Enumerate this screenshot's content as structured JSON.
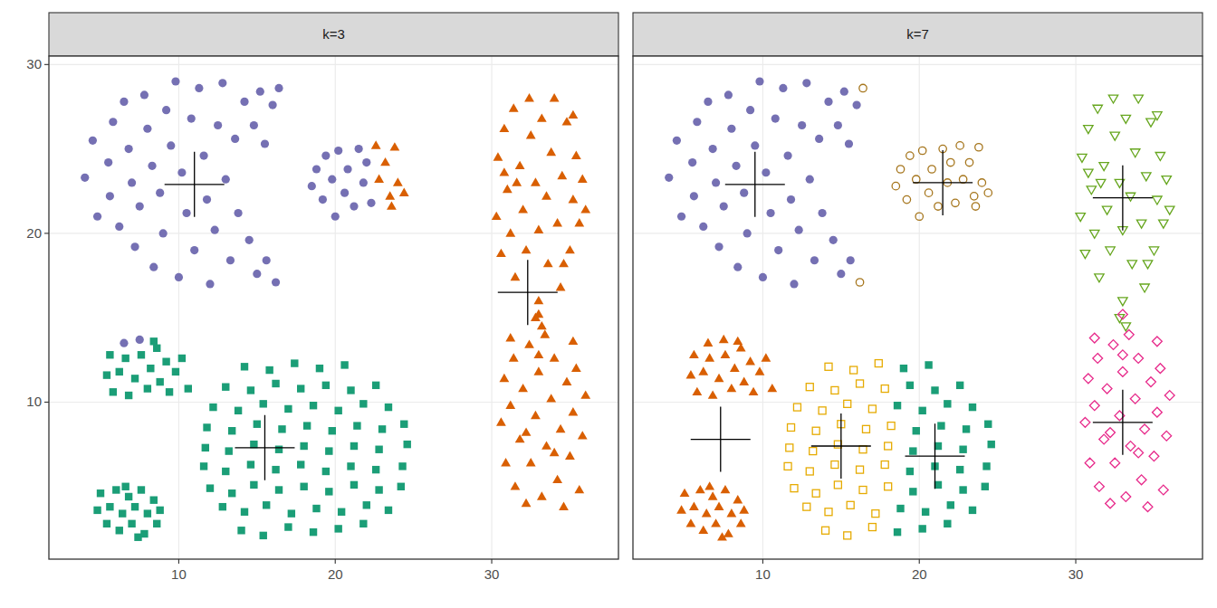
{
  "chart_data": [
    {
      "type": "scatter",
      "title": "k=3",
      "xlim": [
        1.7,
        38.1
      ],
      "ylim": [
        0.7,
        30.5
      ],
      "xticks": [
        10,
        20,
        30
      ],
      "yticks": [
        10,
        20,
        30
      ],
      "grid": true,
      "series": [
        {
          "color": "#7570b3",
          "marker": "circle",
          "x": [
            4,
            4.5,
            4.8,
            5.5,
            5.8,
            5.6,
            6.2,
            6.5,
            6.8,
            7,
            7.2,
            7.5,
            7.8,
            8,
            8.3,
            8.4,
            8.8,
            9,
            9.2,
            9.5,
            9.8,
            10,
            10.2,
            10.5,
            10.8,
            11,
            11.3,
            11.6,
            11.8,
            12,
            12.3,
            12.5,
            12.8,
            13,
            13.3,
            13.6,
            13.8,
            14.2,
            14.5,
            14.8,
            15,
            15.2,
            15.5,
            15.6,
            16,
            16.2,
            16.4,
            18.5,
            18.8,
            19.2,
            19.4,
            19.8,
            20,
            20.2,
            20.6,
            20.8,
            21.2,
            21.5,
            21.8,
            22,
            22.3,
            6.5,
            7.5
          ],
          "y": [
            23.3,
            25.5,
            21,
            24.2,
            26.6,
            22.2,
            20.4,
            27.8,
            25,
            23,
            19.2,
            21.6,
            28.2,
            26.2,
            24,
            18,
            22.4,
            20,
            27.3,
            25.2,
            29,
            17.4,
            23.6,
            21.2,
            26.8,
            19,
            28.6,
            24.6,
            22,
            17,
            20.2,
            26.4,
            28.9,
            23.2,
            18.4,
            25.6,
            21.2,
            27.8,
            19.6,
            26.4,
            17.6,
            28.4,
            25.3,
            18.4,
            27.6,
            17.1,
            28.6,
            22.8,
            23.8,
            22,
            24.6,
            23.2,
            21,
            24.9,
            22.4,
            23.8,
            21.6,
            25,
            23,
            24.2,
            21.8,
            13.5,
            13.7
          ]
        },
        {
          "color": "#1b9e77",
          "marker": "square",
          "x": [
            5.4,
            5.6,
            5.8,
            6.2,
            6.6,
            6.8,
            7.2,
            7.6,
            8,
            8.2,
            8.6,
            8.8,
            9.2,
            9.4,
            9.8,
            10.2,
            10.6,
            8.4,
            4.8,
            5,
            5.4,
            5.6,
            6,
            6.2,
            6.4,
            6.8,
            7,
            7.2,
            7.6,
            7.8,
            8,
            8.4,
            8.6,
            8.8,
            6.6,
            7.4,
            14,
            15.4,
            17,
            12.8,
            14.2,
            15.6,
            17.2,
            12,
            13.4,
            14.8,
            16.4,
            18,
            11.6,
            13,
            14.6,
            16.2,
            17.8,
            11.7,
            13.2,
            14.8,
            16.4,
            18,
            11.8,
            13.4,
            15,
            16.6,
            18.2,
            12.2,
            13.8,
            15.4,
            17,
            13,
            14.6,
            16.2,
            17.8,
            14.2,
            15.8,
            17.4,
            18.6,
            20.2,
            21.8,
            18.8,
            20.4,
            22,
            23.4,
            19.6,
            21.2,
            22.8,
            24.2,
            19.4,
            21,
            22.6,
            24.3,
            19.6,
            21.2,
            22.8,
            24.6,
            19.8,
            21.4,
            23,
            24.4,
            18.6,
            20.2,
            21.8,
            23.4,
            19.4,
            21,
            22.6,
            19,
            20.6
          ],
          "y": [
            11.6,
            12.8,
            10.6,
            11.8,
            12.6,
            10.4,
            11.4,
            12.8,
            10.8,
            12,
            13.2,
            11.2,
            12.4,
            10.6,
            11.8,
            12.6,
            10.8,
            13.6,
            3.6,
            4.6,
            2.8,
            3.8,
            4.8,
            2.4,
            3.4,
            4.4,
            2.8,
            3.8,
            4.8,
            2.2,
            3.4,
            4.2,
            2.8,
            3.6,
            5,
            2,
            2.4,
            2.1,
            2.6,
            3.8,
            3.5,
            3.9,
            3.4,
            4.9,
            4.6,
            5.1,
            4.8,
            5,
            6.2,
            5.9,
            6.3,
            6,
            6.3,
            7.3,
            7.1,
            7.5,
            7.2,
            7.4,
            8.5,
            8.3,
            8.7,
            8.4,
            8.6,
            9.7,
            9.5,
            9.9,
            9.6,
            10.9,
            10.7,
            11.1,
            10.8,
            12.1,
            11.9,
            12.3,
            2.3,
            2.5,
            2.8,
            3.7,
            3.5,
            3.9,
            3.6,
            4.7,
            5.1,
            4.8,
            5,
            5.9,
            6.2,
            6,
            6.2,
            7.1,
            7.4,
            7.2,
            7.5,
            8.3,
            8.6,
            8.4,
            8.7,
            9.8,
            9.5,
            9.9,
            9.7,
            11,
            10.7,
            11,
            12,
            12.2
          ]
        },
        {
          "color": "#d95f02",
          "marker": "triangle",
          "x": [
            22.6,
            22.8,
            23.2,
            23.5,
            23.8,
            24,
            24.4,
            23.6,
            30.3,
            30.4,
            30.6,
            30.8,
            31,
            31.2,
            31.4,
            31.5,
            31.8,
            32,
            32.2,
            32.4,
            32.5,
            32.8,
            33,
            33,
            33.2,
            33.5,
            33.6,
            33.8,
            34,
            34.2,
            34.4,
            34.5,
            34.8,
            35,
            35.2,
            35.4,
            35.6,
            35.8,
            35.2,
            34.6,
            32.8,
            33.2,
            31.6,
            36,
            30.8,
            30.6,
            30.8,
            30.9,
            31.2,
            31.4,
            31.5,
            31.8,
            32,
            32.2,
            32.4,
            32.5,
            32.8,
            33,
            33,
            33.2,
            33.4,
            33.5,
            33.8,
            34,
            34.2,
            34.4,
            34.6,
            34.8,
            35,
            35.2,
            35.4,
            35.6,
            35.8,
            36,
            35.2,
            31.2,
            33,
            32.2,
            34
          ],
          "y": [
            25.2,
            23.2,
            24.2,
            22.2,
            25.1,
            23,
            22.4,
            21.6,
            21,
            24.5,
            18.8,
            26.2,
            22.6,
            20,
            27.4,
            17.4,
            24,
            21.4,
            19,
            28,
            25.8,
            23,
            16,
            20.2,
            26.8,
            22.2,
            18.2,
            24.8,
            28,
            20.6,
            16.8,
            23.4,
            26.6,
            19,
            22,
            24.6,
            20.6,
            23.2,
            27,
            18.2,
            15,
            14.5,
            23,
            21.4,
            23.6,
            8.8,
            11.4,
            6.4,
            9.8,
            12.6,
            5,
            7.8,
            10.8,
            4,
            13.4,
            6.4,
            9.2,
            11.8,
            15.2,
            4.4,
            14,
            7.4,
            10.2,
            12.6,
            5.4,
            8.4,
            3.8,
            11.2,
            6.8,
            9.4,
            12,
            4.8,
            8,
            10.4,
            13.6,
            13.8,
            12.8,
            8.2,
            7
          ]
        },
        {
          "color": "#000000",
          "marker": "cross",
          "x": [
            11,
            15.5,
            32.3
          ],
          "y": [
            22.9,
            7.3,
            16.5
          ]
        }
      ]
    },
    {
      "type": "scatter",
      "title": "k=7",
      "xlim": [
        1.7,
        38.1
      ],
      "ylim": [
        0.7,
        30.5
      ],
      "xticks": [
        10,
        20,
        30
      ],
      "yticks": [
        10,
        20,
        30
      ],
      "grid": true,
      "tick_labels": "x",
      "series": [
        {
          "color": "#7570b3",
          "marker": "circle",
          "x": [
            4,
            4.5,
            4.8,
            5.5,
            5.8,
            5.6,
            6.2,
            6.5,
            6.8,
            7,
            7.2,
            7.5,
            7.8,
            8,
            8.3,
            8.4,
            8.8,
            9,
            9.2,
            9.5,
            9.8,
            10,
            10.2,
            10.5,
            10.8,
            11,
            11.3,
            11.6,
            11.8,
            12,
            12.3,
            12.5,
            12.8,
            13,
            13.3,
            13.6,
            13.8,
            14.2,
            14.5,
            14.8,
            15,
            15.2,
            15.5,
            15.6,
            16
          ],
          "y": [
            23.3,
            25.5,
            21,
            24.2,
            26.6,
            22.2,
            20.4,
            27.8,
            25,
            23,
            19.2,
            21.6,
            28.2,
            26.2,
            24,
            18,
            22.4,
            20,
            27.3,
            25.2,
            29,
            17.4,
            23.6,
            21.2,
            26.8,
            19,
            28.6,
            24.6,
            22,
            17,
            20.2,
            26.4,
            28.9,
            23.2,
            18.4,
            25.6,
            21.2,
            27.8,
            19.6,
            26.4,
            17.6,
            28.4,
            25.3,
            18.4,
            27.6
          ]
        },
        {
          "color": "#a6761d",
          "marker": "circle-open",
          "x": [
            16.2,
            16.4,
            18.5,
            18.8,
            19.2,
            19.4,
            19.8,
            20,
            20.2,
            20.6,
            20.8,
            21.2,
            21.5,
            21.8,
            22,
            22.3,
            22.6,
            22.8,
            23.2,
            23.5,
            23.8,
            24,
            24.4,
            23.6
          ],
          "y": [
            17.1,
            28.6,
            22.8,
            23.8,
            22,
            24.6,
            23.2,
            21,
            24.9,
            22.4,
            23.8,
            21.6,
            25,
            23,
            24.2,
            21.8,
            25.2,
            23.2,
            24.2,
            22.2,
            25.1,
            23,
            22.4,
            21.6
          ]
        },
        {
          "color": "#66a61e",
          "marker": "triangle-down-open",
          "x": [
            30.3,
            30.4,
            30.6,
            30.8,
            31,
            31.2,
            31.4,
            31.5,
            31.8,
            32,
            32.2,
            32.4,
            32.5,
            32.8,
            33,
            33,
            33.2,
            33.5,
            33.6,
            33.8,
            34,
            34.2,
            34.4,
            34.5,
            34.8,
            35,
            35.2,
            35.4,
            35.6,
            35.8,
            35.2,
            34.6,
            32.8,
            33.2,
            31.6,
            36,
            30.8
          ],
          "y": [
            21,
            24.5,
            18.8,
            26.2,
            22.6,
            20,
            27.4,
            17.4,
            24,
            21.4,
            19,
            28,
            25.8,
            23,
            16,
            20.2,
            26.8,
            22.2,
            18.2,
            24.8,
            28,
            20.6,
            16.8,
            23.4,
            26.6,
            19,
            22,
            24.6,
            20.6,
            23.2,
            27,
            18.2,
            15,
            14.5,
            23,
            21.4,
            23.6
          ]
        },
        {
          "color": "#e7298a",
          "marker": "diamond-open",
          "x": [
            30.6,
            30.8,
            30.9,
            31.2,
            31.4,
            31.5,
            31.8,
            32,
            32.2,
            32.4,
            32.5,
            32.8,
            33,
            33,
            33.2,
            33.4,
            33.5,
            33.8,
            34,
            34.2,
            34.4,
            34.6,
            34.8,
            35,
            35.2,
            35.4,
            35.6,
            35.8,
            36,
            35.2,
            31.2,
            33,
            32.2,
            34
          ],
          "y": [
            8.8,
            11.4,
            6.4,
            9.8,
            12.6,
            5,
            7.8,
            10.8,
            4,
            13.4,
            6.4,
            9.2,
            11.8,
            15.2,
            4.4,
            14,
            7.4,
            10.2,
            12.6,
            5.4,
            8.4,
            3.8,
            11.2,
            6.8,
            9.4,
            12,
            4.8,
            8,
            10.4,
            13.6,
            13.8,
            12.8,
            8.2,
            7
          ]
        },
        {
          "color": "#d95f02",
          "marker": "triangle",
          "x": [
            5.4,
            5.6,
            5.8,
            6.2,
            6.6,
            6.8,
            7.2,
            7.6,
            8,
            8.2,
            8.6,
            8.8,
            9.2,
            9.4,
            9.8,
            10.2,
            10.6,
            8.4,
            6.5,
            7.5,
            4.8,
            5,
            5.4,
            5.6,
            6,
            6.2,
            6.4,
            6.8,
            7,
            7.2,
            7.6,
            7.8,
            8,
            8.4,
            8.6,
            8.8,
            6.6,
            7.4
          ],
          "y": [
            11.6,
            12.8,
            10.6,
            11.8,
            12.6,
            10.4,
            11.4,
            12.8,
            10.8,
            12,
            13.2,
            11.2,
            12.4,
            10.6,
            11.8,
            12.6,
            10.8,
            13.6,
            13.5,
            13.7,
            3.6,
            4.6,
            2.8,
            3.8,
            4.8,
            2.4,
            3.4,
            4.4,
            2.8,
            3.8,
            4.8,
            2.2,
            3.4,
            4.2,
            2.8,
            3.6,
            5,
            2
          ]
        },
        {
          "color": "#e6ab02",
          "marker": "square-open",
          "x": [
            14,
            15.4,
            17,
            12.8,
            14.2,
            15.6,
            17.2,
            12,
            13.4,
            14.8,
            16.4,
            18,
            11.6,
            13,
            14.6,
            16.2,
            17.8,
            11.7,
            13.2,
            14.8,
            16.4,
            18,
            11.8,
            13.4,
            15,
            16.6,
            18.2,
            12.2,
            13.8,
            15.4,
            17,
            13,
            14.6,
            16.2,
            17.8,
            14.2,
            15.8,
            17.4
          ],
          "y": [
            2.4,
            2.1,
            2.6,
            3.8,
            3.5,
            3.9,
            3.4,
            4.9,
            4.6,
            5.1,
            4.8,
            5,
            6.2,
            5.9,
            6.3,
            6,
            6.3,
            7.3,
            7.1,
            7.5,
            7.2,
            7.4,
            8.5,
            8.3,
            8.7,
            8.4,
            8.6,
            9.7,
            9.5,
            9.9,
            9.6,
            10.9,
            10.7,
            11.1,
            10.8,
            12.1,
            11.9,
            12.3
          ]
        },
        {
          "color": "#1b9e77",
          "marker": "square",
          "x": [
            18.6,
            20.2,
            21.8,
            18.8,
            20.4,
            22,
            23.4,
            19.6,
            21.2,
            22.8,
            24.2,
            19.4,
            21,
            22.6,
            24.3,
            19.6,
            21.2,
            22.8,
            24.6,
            19.8,
            21.4,
            23,
            24.4,
            18.6,
            20.2,
            21.8,
            23.4,
            19.4,
            21,
            22.6,
            19,
            20.6
          ],
          "y": [
            2.3,
            2.5,
            2.8,
            3.7,
            3.5,
            3.9,
            3.6,
            4.7,
            5.1,
            4.8,
            5,
            5.9,
            6.2,
            6,
            6.2,
            7.1,
            7.4,
            7.2,
            7.5,
            8.3,
            8.6,
            8.4,
            8.7,
            9.8,
            9.5,
            9.9,
            9.7,
            11,
            10.7,
            11,
            12,
            12.2
          ]
        },
        {
          "color": "#000000",
          "marker": "cross",
          "x": [
            9.5,
            21.5,
            33,
            33,
            7.3,
            15,
            21
          ],
          "y": [
            22.9,
            23,
            22.1,
            8.8,
            7.8,
            7.4,
            6.8
          ]
        }
      ]
    }
  ]
}
